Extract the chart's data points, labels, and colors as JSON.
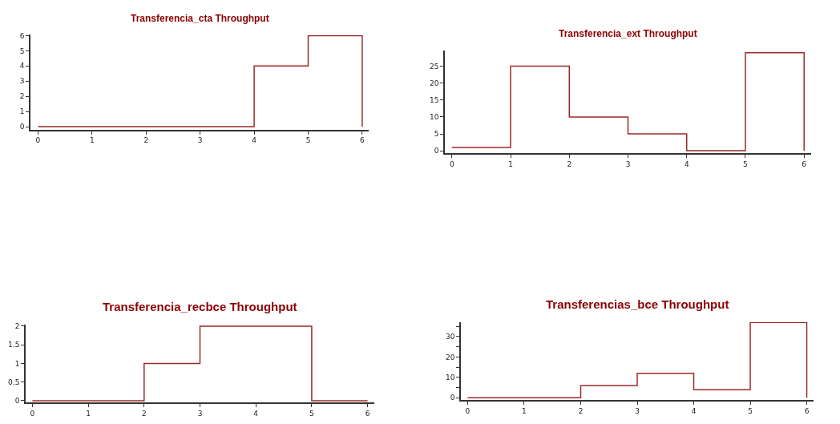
{
  "chart_data": [
    {
      "type": "step",
      "title": "Transferencia_cta Throughput",
      "x": [
        0,
        1,
        2,
        3,
        4,
        5,
        6
      ],
      "series": [
        {
          "color": "#9b2a2a",
          "values": [
            0,
            0,
            0,
            0,
            4,
            6,
            0
          ]
        }
      ],
      "xlim": [
        -0.14,
        6.12
      ],
      "xticks": [
        0,
        1,
        2,
        3,
        4,
        5,
        6
      ],
      "ylim": [
        -0.2,
        6.05
      ],
      "yticks": [
        0,
        1,
        2,
        3,
        4,
        5,
        6
      ]
    },
    {
      "type": "step",
      "title": "Transferencia_ext Throughput",
      "x": [
        0,
        1,
        2,
        3,
        4,
        5,
        6
      ],
      "series": [
        {
          "color": "#9b2a2a",
          "values": [
            1,
            25,
            10,
            5,
            0,
            29,
            0
          ]
        }
      ],
      "xlim": [
        -0.12,
        6.12
      ],
      "xticks": [
        0,
        1,
        2,
        3,
        4,
        5,
        6
      ],
      "ylim": [
        -0.8,
        29.6
      ],
      "yticks": [
        0,
        5,
        10,
        15,
        20,
        25
      ]
    },
    {
      "type": "step",
      "title": "Transferencia_recbce Throughput",
      "x": [
        0,
        1,
        2,
        3,
        4,
        5,
        6
      ],
      "series": [
        {
          "color": "#9b2a2a",
          "values": [
            0,
            0,
            1,
            2,
            2,
            0,
            0
          ]
        }
      ],
      "xlim": [
        -0.12,
        6.12
      ],
      "xticks": [
        0,
        1,
        2,
        3,
        4,
        5,
        6
      ],
      "ylim": [
        -0.05,
        2.05
      ],
      "yticks": [
        0,
        0.5,
        1,
        1.5,
        2
      ]
    },
    {
      "type": "step",
      "title": "Transferencias_bce Throughput",
      "x": [
        0,
        1,
        2,
        3,
        4,
        5,
        6
      ],
      "series": [
        {
          "color": "#9b2a2a",
          "values": [
            0,
            0,
            6,
            12,
            4,
            37,
            0
          ]
        }
      ],
      "xlim": [
        -0.12,
        6.12
      ],
      "xticks": [
        0,
        1,
        2,
        3,
        4,
        5,
        6
      ],
      "ylim": [
        -1.2,
        37.2
      ],
      "yticks": [
        0,
        {
          "value": 5,
          "label": null
        },
        10,
        {
          "value": 15,
          "label": null
        },
        20,
        {
          "value": 25,
          "label": null
        },
        30,
        {
          "value": 35,
          "label": null
        }
      ]
    }
  ]
}
